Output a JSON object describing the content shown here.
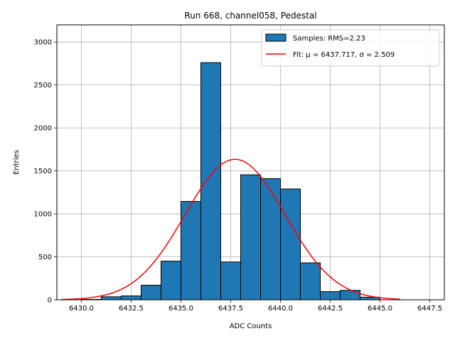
{
  "chart_data": {
    "type": "bar",
    "title": "Run 668, channel058, Pedestal",
    "xlabel": "ADC Counts",
    "ylabel": "Entries",
    "xlim": [
      6428.77,
      6448.23
    ],
    "ylim": [
      0,
      3200
    ],
    "xticks": [
      6430.0,
      6432.5,
      6435.0,
      6437.5,
      6440.0,
      6442.5,
      6445.0,
      6447.5
    ],
    "xtick_labels": [
      "6430.0",
      "6432.5",
      "6435.0",
      "6437.5",
      "6440.0",
      "6442.5",
      "6445.0",
      "6447.5"
    ],
    "yticks": [
      0,
      500,
      1000,
      1500,
      2000,
      2500,
      3000
    ],
    "ytick_labels": [
      "0",
      "500",
      "1000",
      "1500",
      "2000",
      "2500",
      "3000"
    ],
    "grid": true,
    "legend_position": "top-right",
    "bar_color": "#1f77b4",
    "bar_edge_color": "#000000",
    "fit_color": "#ff0000",
    "histogram": {
      "name": "Samples: RMS=2.23",
      "bins": [
        {
          "x0": 6430.0,
          "x1": 6431.0,
          "value": 5
        },
        {
          "x0": 6431.0,
          "x1": 6432.0,
          "value": 35
        },
        {
          "x0": 6432.0,
          "x1": 6433.0,
          "value": 45
        },
        {
          "x0": 6433.0,
          "x1": 6434.0,
          "value": 170
        },
        {
          "x0": 6434.0,
          "x1": 6435.0,
          "value": 450
        },
        {
          "x0": 6435.0,
          "x1": 6436.0,
          "value": 1145
        },
        {
          "x0": 6436.0,
          "x1": 6437.0,
          "value": 2760
        },
        {
          "x0": 6437.0,
          "x1": 6438.0,
          "value": 440
        },
        {
          "x0": 6438.0,
          "x1": 6439.0,
          "value": 1455
        },
        {
          "x0": 6439.0,
          "x1": 6440.0,
          "value": 1410
        },
        {
          "x0": 6440.0,
          "x1": 6441.0,
          "value": 1290
        },
        {
          "x0": 6441.0,
          "x1": 6442.0,
          "value": 430
        },
        {
          "x0": 6442.0,
          "x1": 6443.0,
          "value": 95
        },
        {
          "x0": 6443.0,
          "x1": 6444.0,
          "value": 110
        },
        {
          "x0": 6444.0,
          "x1": 6445.0,
          "value": 30
        }
      ]
    },
    "fit": {
      "type": "gaussian",
      "label_prefix": "Fit: ",
      "label": "μ = 6437.717, σ = 2.509",
      "mu": 6437.717,
      "sigma": 2.509,
      "amplitude": 1635,
      "x_range": [
        6429.0,
        6446.0
      ]
    }
  }
}
